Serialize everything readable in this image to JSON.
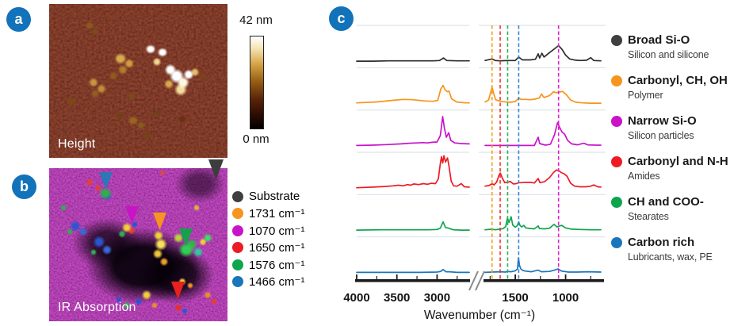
{
  "accent": {
    "badge_blue": "#1272BA"
  },
  "panels": {
    "a": {
      "badge": "a",
      "image_label": "Height",
      "colorbar_max": "42 nm",
      "colorbar_min": "0 nm"
    },
    "b": {
      "badge": "b",
      "image_label": "IR Absorption",
      "legend": [
        {
          "label": "Substrate",
          "color": "#3F3F3F"
        },
        {
          "label": "1731 cm⁻¹",
          "color": "#F7941D"
        },
        {
          "label": "1070 cm⁻¹",
          "color": "#C913C9"
        },
        {
          "label": "1650 cm⁻¹",
          "color": "#EC1C24"
        },
        {
          "label": "1576 cm⁻¹",
          "color": "#0DA54E"
        },
        {
          "label": "1466 cm⁻¹",
          "color": "#1B75BB"
        }
      ],
      "markers": [
        {
          "name": "substrate",
          "color": "#3D3D3D"
        },
        {
          "name": "1466",
          "color": "#2E76B5"
        },
        {
          "name": "1070",
          "color": "#C913C9"
        },
        {
          "name": "1731",
          "color": "#F7941D"
        },
        {
          "name": "1576",
          "color": "#16A04C"
        },
        {
          "name": "1650",
          "color": "#E8201E"
        }
      ]
    },
    "c": {
      "badge": "c",
      "legend": [
        {
          "title": "Broad Si-O",
          "subtitle": "Silicon and silicone",
          "color": "#3F3F3F"
        },
        {
          "title": "Carbonyl, CH, OH",
          "subtitle": "Polymer",
          "color": "#F7941D"
        },
        {
          "title": "Narrow Si-O",
          "subtitle": "Silicon particles",
          "color": "#C913C9"
        },
        {
          "title": "Carbonyl and N-H",
          "subtitle": "Amides",
          "color": "#EC1C24"
        },
        {
          "title": "CH and COO-",
          "subtitle": "Stearates",
          "color": "#0DA54E"
        },
        {
          "title": "Carbon rich",
          "subtitle": "Lubricants, wax, PE",
          "color": "#1B75BB"
        }
      ]
    }
  },
  "chart_data": {
    "type": "line",
    "title": "",
    "xlabel": "Wavenumber (cm⁻¹)",
    "ylabel": "",
    "grid": "horizontal",
    "legend_position": "right",
    "x_axis": {
      "broken": true,
      "break_symbol": "//",
      "segments": [
        {
          "min": 2600,
          "max": 4000,
          "ticks": [
            4000,
            3500,
            3000
          ],
          "minor_ticks": [
            3750,
            3250,
            2750
          ]
        },
        {
          "min": 650,
          "max": 1800,
          "ticks": [
            1500,
            1000
          ],
          "minor_ticks": [
            1750,
            1250,
            750
          ]
        }
      ]
    },
    "marker_lines": [
      {
        "wavenumber": 1731,
        "color": "#F5A11C"
      },
      {
        "wavenumber": 1650,
        "color": "#F03630"
      },
      {
        "wavenumber": 1576,
        "color": "#2FAE5F"
      },
      {
        "wavenumber": 1466,
        "color": "#3585D6"
      },
      {
        "wavenumber": 1070,
        "color": "#E020D0"
      }
    ],
    "series": [
      {
        "name": "Broad Si-O",
        "color": "#2D2D2D",
        "points_left": [
          [
            4000,
            0.03
          ],
          [
            3800,
            0.03
          ],
          [
            3600,
            0.04
          ],
          [
            3400,
            0.04
          ],
          [
            3200,
            0.04
          ],
          [
            3050,
            0.04
          ],
          [
            2970,
            0.05
          ],
          [
            2920,
            0.13
          ],
          [
            2880,
            0.05
          ],
          [
            2750,
            0.04
          ],
          [
            2600,
            0.04
          ]
        ],
        "points_right": [
          [
            1800,
            0.05
          ],
          [
            1731,
            0.1
          ],
          [
            1700,
            0.05
          ],
          [
            1650,
            0.04
          ],
          [
            1576,
            0.05
          ],
          [
            1500,
            0.05
          ],
          [
            1466,
            0.16
          ],
          [
            1430,
            0.07
          ],
          [
            1350,
            0.07
          ],
          [
            1300,
            0.09
          ],
          [
            1272,
            0.26
          ],
          [
            1258,
            0.13
          ],
          [
            1235,
            0.28
          ],
          [
            1215,
            0.16
          ],
          [
            1160,
            0.3
          ],
          [
            1110,
            0.42
          ],
          [
            1070,
            0.52
          ],
          [
            1035,
            0.4
          ],
          [
            1000,
            0.22
          ],
          [
            960,
            0.1
          ],
          [
            900,
            0.06
          ],
          [
            850,
            0.05
          ],
          [
            790,
            0.06
          ],
          [
            750,
            0.14
          ],
          [
            720,
            0.05
          ],
          [
            650,
            0.04
          ]
        ]
      },
      {
        "name": "Carbonyl, CH, OH",
        "color": "#F7941D",
        "points_left": [
          [
            4000,
            0.05
          ],
          [
            3750,
            0.08
          ],
          [
            3550,
            0.13
          ],
          [
            3420,
            0.16
          ],
          [
            3300,
            0.15
          ],
          [
            3150,
            0.11
          ],
          [
            3050,
            0.1
          ],
          [
            2990,
            0.13
          ],
          [
            2955,
            0.48
          ],
          [
            2925,
            0.6
          ],
          [
            2900,
            0.46
          ],
          [
            2870,
            0.4
          ],
          [
            2850,
            0.42
          ],
          [
            2820,
            0.18
          ],
          [
            2760,
            0.08
          ],
          [
            2650,
            0.05
          ],
          [
            2600,
            0.05
          ]
        ],
        "points_right": [
          [
            1800,
            0.08
          ],
          [
            1765,
            0.14
          ],
          [
            1731,
            0.55
          ],
          [
            1715,
            0.35
          ],
          [
            1695,
            0.15
          ],
          [
            1650,
            0.1
          ],
          [
            1600,
            0.08
          ],
          [
            1550,
            0.07
          ],
          [
            1500,
            0.09
          ],
          [
            1466,
            0.2
          ],
          [
            1440,
            0.16
          ],
          [
            1400,
            0.16
          ],
          [
            1350,
            0.15
          ],
          [
            1300,
            0.17
          ],
          [
            1260,
            0.21
          ],
          [
            1240,
            0.33
          ],
          [
            1215,
            0.22
          ],
          [
            1160,
            0.28
          ],
          [
            1120,
            0.4
          ],
          [
            1090,
            0.37
          ],
          [
            1070,
            0.39
          ],
          [
            1030,
            0.41
          ],
          [
            990,
            0.3
          ],
          [
            950,
            0.14
          ],
          [
            900,
            0.07
          ],
          [
            830,
            0.05
          ],
          [
            750,
            0.04
          ],
          [
            650,
            0.04
          ]
        ]
      },
      {
        "name": "Narrow Si-O",
        "color": "#C913C9",
        "points_left": [
          [
            4000,
            0.04
          ],
          [
            3800,
            0.05
          ],
          [
            3600,
            0.07
          ],
          [
            3450,
            0.09
          ],
          [
            3350,
            0.11
          ],
          [
            3250,
            0.12
          ],
          [
            3180,
            0.13
          ],
          [
            3120,
            0.12
          ],
          [
            3060,
            0.14
          ],
          [
            3000,
            0.15
          ],
          [
            2960,
            0.35
          ],
          [
            2930,
            0.95
          ],
          [
            2910,
            0.6
          ],
          [
            2885,
            0.3
          ],
          [
            2855,
            0.44
          ],
          [
            2830,
            0.2
          ],
          [
            2780,
            0.12
          ],
          [
            2700,
            0.1
          ],
          [
            2600,
            0.09
          ]
        ],
        "points_right": [
          [
            1800,
            0.04
          ],
          [
            1700,
            0.04
          ],
          [
            1600,
            0.04
          ],
          [
            1500,
            0.04
          ],
          [
            1400,
            0.04
          ],
          [
            1310,
            0.04
          ],
          [
            1272,
            0.3
          ],
          [
            1258,
            0.1
          ],
          [
            1200,
            0.05
          ],
          [
            1150,
            0.08
          ],
          [
            1110,
            0.38
          ],
          [
            1080,
            0.76
          ],
          [
            1060,
            0.62
          ],
          [
            1035,
            0.46
          ],
          [
            1010,
            0.4
          ],
          [
            980,
            0.2
          ],
          [
            940,
            0.09
          ],
          [
            880,
            0.06
          ],
          [
            820,
            0.11
          ],
          [
            780,
            0.06
          ],
          [
            700,
            0.05
          ],
          [
            650,
            0.05
          ]
        ]
      },
      {
        "name": "Carbonyl and N-H",
        "color": "#EC1C24",
        "points_left": [
          [
            4000,
            0.04
          ],
          [
            3800,
            0.06
          ],
          [
            3650,
            0.08
          ],
          [
            3550,
            0.1
          ],
          [
            3480,
            0.12
          ],
          [
            3420,
            0.1
          ],
          [
            3370,
            0.14
          ],
          [
            3330,
            0.12
          ],
          [
            3290,
            0.16
          ],
          [
            3230,
            0.14
          ],
          [
            3170,
            0.17
          ],
          [
            3120,
            0.15
          ],
          [
            3070,
            0.18
          ],
          [
            3020,
            0.17
          ],
          [
            2985,
            0.32
          ],
          [
            2960,
            0.8
          ],
          [
            2945,
            1.02
          ],
          [
            2930,
            0.82
          ],
          [
            2915,
            1.05
          ],
          [
            2895,
            0.85
          ],
          [
            2870,
            0.98
          ],
          [
            2850,
            0.7
          ],
          [
            2825,
            0.25
          ],
          [
            2795,
            0.1
          ],
          [
            2750,
            0.09
          ],
          [
            2700,
            0.17
          ],
          [
            2660,
            0.07
          ],
          [
            2600,
            0.06
          ]
        ],
        "points_right": [
          [
            1800,
            0.09
          ],
          [
            1760,
            0.11
          ],
          [
            1731,
            0.17
          ],
          [
            1710,
            0.13
          ],
          [
            1685,
            0.22
          ],
          [
            1660,
            0.45
          ],
          [
            1648,
            0.5
          ],
          [
            1630,
            0.35
          ],
          [
            1605,
            0.2
          ],
          [
            1576,
            0.21
          ],
          [
            1550,
            0.24
          ],
          [
            1520,
            0.16
          ],
          [
            1490,
            0.17
          ],
          [
            1466,
            0.2
          ],
          [
            1440,
            0.2
          ],
          [
            1400,
            0.21
          ],
          [
            1350,
            0.21
          ],
          [
            1310,
            0.19
          ],
          [
            1272,
            0.33
          ],
          [
            1255,
            0.2
          ],
          [
            1210,
            0.23
          ],
          [
            1160,
            0.36
          ],
          [
            1120,
            0.52
          ],
          [
            1090,
            0.6
          ],
          [
            1070,
            0.58
          ],
          [
            1045,
            0.52
          ],
          [
            1015,
            0.48
          ],
          [
            985,
            0.4
          ],
          [
            950,
            0.18
          ],
          [
            910,
            0.09
          ],
          [
            860,
            0.07
          ],
          [
            800,
            0.07
          ],
          [
            750,
            0.09
          ],
          [
            720,
            0.13
          ],
          [
            680,
            0.07
          ],
          [
            650,
            0.06
          ]
        ]
      },
      {
        "name": "CH and COO-",
        "color": "#0DA54E",
        "points_left": [
          [
            4000,
            0.04
          ],
          [
            3700,
            0.05
          ],
          [
            3400,
            0.05
          ],
          [
            3100,
            0.05
          ],
          [
            3000,
            0.06
          ],
          [
            2960,
            0.1
          ],
          [
            2925,
            0.3
          ],
          [
            2895,
            0.12
          ],
          [
            2855,
            0.1
          ],
          [
            2800,
            0.05
          ],
          [
            2700,
            0.04
          ],
          [
            2600,
            0.04
          ]
        ],
        "points_right": [
          [
            1800,
            0.05
          ],
          [
            1731,
            0.07
          ],
          [
            1700,
            0.05
          ],
          [
            1650,
            0.07
          ],
          [
            1620,
            0.09
          ],
          [
            1595,
            0.15
          ],
          [
            1578,
            0.42
          ],
          [
            1562,
            0.28
          ],
          [
            1542,
            0.46
          ],
          [
            1525,
            0.2
          ],
          [
            1500,
            0.13
          ],
          [
            1480,
            0.18
          ],
          [
            1466,
            0.3
          ],
          [
            1452,
            0.18
          ],
          [
            1435,
            0.14
          ],
          [
            1415,
            0.19
          ],
          [
            1395,
            0.11
          ],
          [
            1350,
            0.09
          ],
          [
            1310,
            0.08
          ],
          [
            1272,
            0.17
          ],
          [
            1260,
            0.09
          ],
          [
            1210,
            0.08
          ],
          [
            1160,
            0.1
          ],
          [
            1115,
            0.22
          ],
          [
            1085,
            0.14
          ],
          [
            1040,
            0.19
          ],
          [
            1000,
            0.11
          ],
          [
            940,
            0.07
          ],
          [
            860,
            0.06
          ],
          [
            750,
            0.05
          ],
          [
            650,
            0.05
          ]
        ]
      },
      {
        "name": "Carbon rich",
        "color": "#1B75BB",
        "points_left": [
          [
            4000,
            0.04
          ],
          [
            3600,
            0.04
          ],
          [
            3200,
            0.04
          ],
          [
            3000,
            0.05
          ],
          [
            2955,
            0.07
          ],
          [
            2925,
            0.13
          ],
          [
            2890,
            0.06
          ],
          [
            2850,
            0.06
          ],
          [
            2750,
            0.04
          ],
          [
            2600,
            0.04
          ]
        ],
        "points_right": [
          [
            1800,
            0.04
          ],
          [
            1731,
            0.05
          ],
          [
            1650,
            0.06
          ],
          [
            1600,
            0.05
          ],
          [
            1576,
            0.07
          ],
          [
            1540,
            0.06
          ],
          [
            1500,
            0.09
          ],
          [
            1478,
            0.15
          ],
          [
            1468,
            0.5
          ],
          [
            1458,
            0.26
          ],
          [
            1445,
            0.15
          ],
          [
            1425,
            0.1
          ],
          [
            1395,
            0.08
          ],
          [
            1340,
            0.06
          ],
          [
            1272,
            0.11
          ],
          [
            1240,
            0.06
          ],
          [
            1160,
            0.07
          ],
          [
            1110,
            0.11
          ],
          [
            1075,
            0.15
          ],
          [
            1040,
            0.08
          ],
          [
            970,
            0.05
          ],
          [
            880,
            0.05
          ],
          [
            780,
            0.06
          ],
          [
            650,
            0.05
          ]
        ]
      }
    ]
  }
}
